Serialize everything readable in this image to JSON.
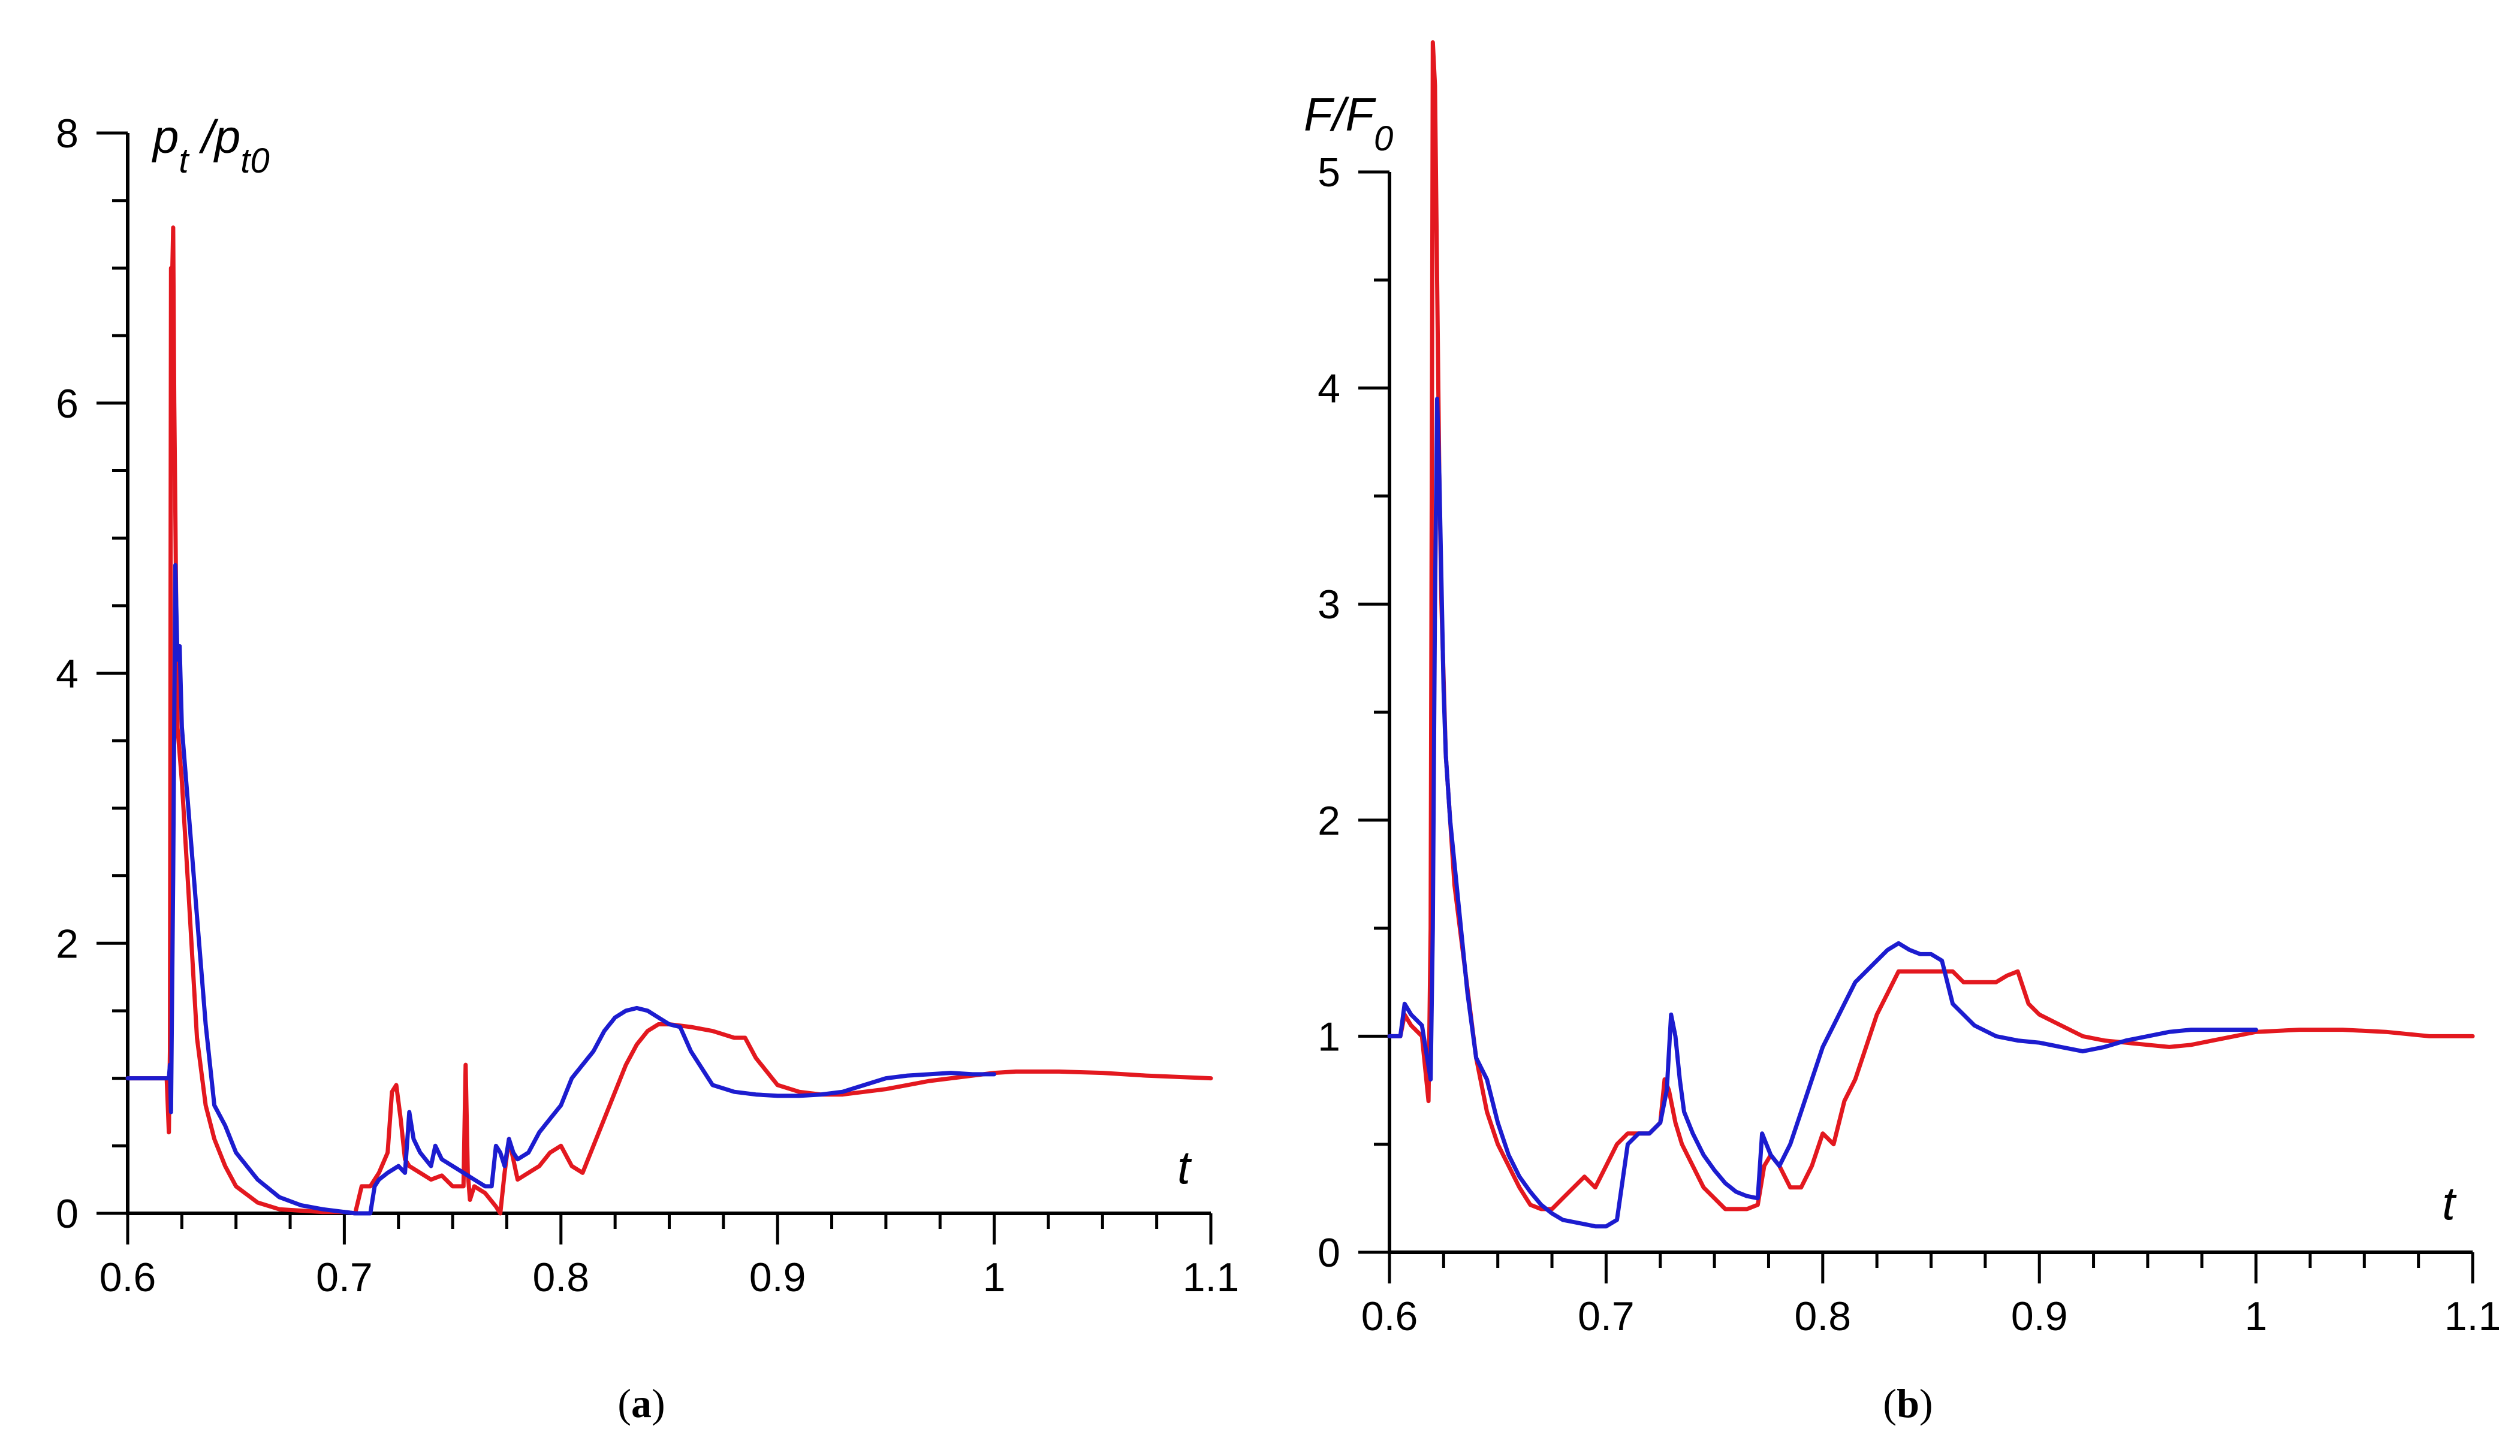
{
  "colors": {
    "red": "#e3181f",
    "blue": "#1c1ccf",
    "axis": "#000000"
  },
  "chart_data": [
    {
      "type": "line",
      "panel": "a",
      "caption_open": "(",
      "caption_letter": "a",
      "caption_close": ")",
      "ylabel_main_1": "p",
      "ylabel_sub_1": "t",
      "ylabel_main_2": "/p",
      "ylabel_sub_2": "t0",
      "xlabel": "t",
      "xlim": [
        0.6,
        1.1
      ],
      "ylim": [
        0,
        8
      ],
      "x_ticks": [
        "0.6",
        "0.7",
        "0.8",
        "0.9",
        "1",
        "1.1"
      ],
      "y_ticks": [
        "0",
        "2",
        "4",
        "6",
        "8"
      ],
      "series": [
        {
          "color": "red",
          "x": [
            0.6,
            0.618,
            0.619,
            0.6195,
            0.62,
            0.6205,
            0.621,
            0.6215,
            0.622,
            0.6225,
            0.623,
            0.625,
            0.628,
            0.632,
            0.636,
            0.64,
            0.645,
            0.65,
            0.66,
            0.67,
            0.68,
            0.69,
            0.7,
            0.705,
            0.708,
            0.712,
            0.716,
            0.72,
            0.722,
            0.724,
            0.726,
            0.728,
            0.73,
            0.735,
            0.74,
            0.745,
            0.75,
            0.755,
            0.756,
            0.757,
            0.758,
            0.76,
            0.765,
            0.77,
            0.772,
            0.774,
            0.776,
            0.778,
            0.78,
            0.785,
            0.79,
            0.795,
            0.8,
            0.805,
            0.81,
            0.815,
            0.82,
            0.825,
            0.83,
            0.835,
            0.84,
            0.845,
            0.85,
            0.86,
            0.87,
            0.88,
            0.885,
            0.89,
            0.9,
            0.91,
            0.92,
            0.93,
            0.94,
            0.95,
            0.96,
            0.97,
            0.98,
            0.99,
            1.0,
            1.01,
            1.03,
            1.05,
            1.07,
            1.1
          ],
          "y": [
            1.0,
            1.0,
            0.6,
            1.2,
            7.0,
            6.9,
            7.3,
            6.0,
            5.2,
            4.3,
            3.6,
            3.2,
            2.4,
            1.3,
            0.8,
            0.55,
            0.35,
            0.2,
            0.08,
            0.03,
            0.02,
            0.01,
            0.01,
            0.0,
            0.2,
            0.2,
            0.3,
            0.45,
            0.9,
            0.95,
            0.7,
            0.4,
            0.35,
            0.3,
            0.25,
            0.28,
            0.2,
            0.2,
            1.1,
            0.3,
            0.1,
            0.2,
            0.15,
            0.05,
            0.0,
            0.3,
            0.55,
            0.4,
            0.25,
            0.3,
            0.35,
            0.45,
            0.5,
            0.35,
            0.3,
            0.5,
            0.7,
            0.9,
            1.1,
            1.25,
            1.35,
            1.4,
            1.4,
            1.38,
            1.35,
            1.3,
            1.3,
            1.15,
            0.95,
            0.9,
            0.88,
            0.88,
            0.9,
            0.92,
            0.95,
            0.98,
            1.0,
            1.02,
            1.04,
            1.05,
            1.05,
            1.04,
            1.02,
            1.0
          ]
        },
        {
          "color": "blue",
          "x": [
            0.6,
            0.619,
            0.6195,
            0.62,
            0.621,
            0.622,
            0.623,
            0.624,
            0.625,
            0.628,
            0.632,
            0.636,
            0.64,
            0.645,
            0.65,
            0.66,
            0.67,
            0.68,
            0.69,
            0.7,
            0.705,
            0.71,
            0.712,
            0.714,
            0.716,
            0.72,
            0.725,
            0.728,
            0.73,
            0.732,
            0.735,
            0.74,
            0.742,
            0.745,
            0.75,
            0.755,
            0.76,
            0.765,
            0.768,
            0.77,
            0.772,
            0.774,
            0.776,
            0.778,
            0.78,
            0.785,
            0.79,
            0.795,
            0.8,
            0.805,
            0.81,
            0.815,
            0.82,
            0.825,
            0.83,
            0.835,
            0.84,
            0.845,
            0.85,
            0.855,
            0.86,
            0.87,
            0.88,
            0.89,
            0.9,
            0.91,
            0.92,
            0.93,
            0.94,
            0.95,
            0.96,
            0.97,
            0.98,
            0.99,
            1.0
          ],
          "y": [
            1.0,
            1.0,
            1.1,
            0.75,
            2.5,
            4.8,
            4.1,
            4.2,
            3.6,
            3.0,
            2.2,
            1.4,
            0.8,
            0.65,
            0.45,
            0.25,
            0.12,
            0.06,
            0.03,
            0.01,
            0.0,
            0.0,
            0.0,
            0.2,
            0.25,
            0.3,
            0.35,
            0.3,
            0.75,
            0.55,
            0.45,
            0.35,
            0.5,
            0.4,
            0.35,
            0.3,
            0.25,
            0.2,
            0.2,
            0.5,
            0.45,
            0.35,
            0.55,
            0.45,
            0.4,
            0.45,
            0.6,
            0.7,
            0.8,
            1.0,
            1.1,
            1.2,
            1.35,
            1.45,
            1.5,
            1.52,
            1.5,
            1.45,
            1.4,
            1.38,
            1.2,
            0.95,
            0.9,
            0.88,
            0.87,
            0.87,
            0.88,
            0.9,
            0.95,
            1.0,
            1.02,
            1.03,
            1.04,
            1.03,
            1.03
          ]
        }
      ]
    },
    {
      "type": "line",
      "panel": "b",
      "caption_open": "(",
      "caption_letter": "b",
      "caption_close": ")",
      "ylabel_main_1": "F/F",
      "ylabel_sub_1": "0",
      "xlabel": "t",
      "xlim": [
        0.6,
        1.1
      ],
      "ylim": [
        0,
        5
      ],
      "x_ticks": [
        "0.6",
        "0.7",
        "0.8",
        "0.9",
        "1",
        "1.1"
      ],
      "y_ticks": [
        "0",
        "1",
        "2",
        "3",
        "4",
        "5"
      ],
      "series": [
        {
          "color": "red",
          "x": [
            0.6,
            0.605,
            0.607,
            0.61,
            0.615,
            0.618,
            0.619,
            0.6195,
            0.62,
            0.621,
            0.622,
            0.623,
            0.624,
            0.626,
            0.63,
            0.635,
            0.64,
            0.645,
            0.65,
            0.655,
            0.66,
            0.665,
            0.67,
            0.675,
            0.68,
            0.685,
            0.69,
            0.695,
            0.7,
            0.705,
            0.71,
            0.715,
            0.72,
            0.725,
            0.727,
            0.729,
            0.732,
            0.735,
            0.74,
            0.745,
            0.75,
            0.755,
            0.76,
            0.765,
            0.77,
            0.773,
            0.776,
            0.78,
            0.785,
            0.79,
            0.795,
            0.8,
            0.805,
            0.81,
            0.815,
            0.82,
            0.825,
            0.83,
            0.835,
            0.84,
            0.845,
            0.85,
            0.855,
            0.86,
            0.865,
            0.87,
            0.875,
            0.88,
            0.885,
            0.89,
            0.895,
            0.9,
            0.91,
            0.92,
            0.93,
            0.94,
            0.95,
            0.96,
            0.97,
            0.98,
            0.99,
            1.0,
            1.02,
            1.04,
            1.06,
            1.08,
            1.1
          ],
          "y": [
            1.0,
            1.0,
            1.1,
            1.05,
            1.0,
            0.7,
            1.5,
            3.5,
            5.6,
            5.4,
            4.5,
            3.6,
            3.0,
            2.3,
            1.7,
            1.3,
            0.9,
            0.65,
            0.5,
            0.4,
            0.3,
            0.22,
            0.2,
            0.2,
            0.25,
            0.3,
            0.35,
            0.3,
            0.4,
            0.5,
            0.55,
            0.55,
            0.55,
            0.6,
            0.8,
            0.75,
            0.6,
            0.5,
            0.4,
            0.3,
            0.25,
            0.2,
            0.2,
            0.2,
            0.22,
            0.4,
            0.45,
            0.4,
            0.3,
            0.3,
            0.4,
            0.55,
            0.5,
            0.7,
            0.8,
            0.95,
            1.1,
            1.2,
            1.3,
            1.3,
            1.3,
            1.3,
            1.3,
            1.3,
            1.25,
            1.25,
            1.25,
            1.25,
            1.28,
            1.3,
            1.15,
            1.1,
            1.05,
            1.0,
            0.98,
            0.97,
            0.96,
            0.95,
            0.96,
            0.98,
            1.0,
            1.02,
            1.03,
            1.03,
            1.02,
            1.0,
            1.0
          ]
        },
        {
          "color": "blue",
          "x": [
            0.6,
            0.605,
            0.607,
            0.61,
            0.615,
            0.619,
            0.62,
            0.621,
            0.622,
            0.623,
            0.624,
            0.625,
            0.626,
            0.628,
            0.632,
            0.636,
            0.64,
            0.645,
            0.65,
            0.655,
            0.66,
            0.665,
            0.67,
            0.675,
            0.68,
            0.685,
            0.69,
            0.695,
            0.7,
            0.705,
            0.71,
            0.715,
            0.72,
            0.725,
            0.728,
            0.73,
            0.732,
            0.734,
            0.736,
            0.74,
            0.745,
            0.75,
            0.755,
            0.76,
            0.765,
            0.77,
            0.772,
            0.774,
            0.776,
            0.78,
            0.785,
            0.79,
            0.795,
            0.8,
            0.805,
            0.81,
            0.815,
            0.82,
            0.825,
            0.83,
            0.835,
            0.84,
            0.845,
            0.85,
            0.855,
            0.86,
            0.87,
            0.88,
            0.89,
            0.9,
            0.91,
            0.92,
            0.93,
            0.94,
            0.95,
            0.96,
            0.97,
            0.98,
            0.99,
            1.0
          ],
          "y": [
            1.0,
            1.0,
            1.15,
            1.1,
            1.05,
            0.8,
            1.5,
            3.0,
            3.95,
            3.6,
            3.1,
            2.6,
            2.3,
            2.0,
            1.6,
            1.2,
            0.9,
            0.8,
            0.6,
            0.45,
            0.35,
            0.28,
            0.22,
            0.18,
            0.15,
            0.14,
            0.13,
            0.12,
            0.12,
            0.15,
            0.5,
            0.55,
            0.55,
            0.6,
            0.75,
            1.1,
            1.0,
            0.8,
            0.65,
            0.55,
            0.45,
            0.38,
            0.32,
            0.28,
            0.26,
            0.25,
            0.55,
            0.5,
            0.45,
            0.4,
            0.5,
            0.65,
            0.8,
            0.95,
            1.05,
            1.15,
            1.25,
            1.3,
            1.35,
            1.4,
            1.43,
            1.4,
            1.38,
            1.38,
            1.35,
            1.15,
            1.05,
            1.0,
            0.98,
            0.97,
            0.95,
            0.93,
            0.95,
            0.98,
            1.0,
            1.02,
            1.03,
            1.03,
            1.03,
            1.03
          ]
        }
      ]
    }
  ]
}
